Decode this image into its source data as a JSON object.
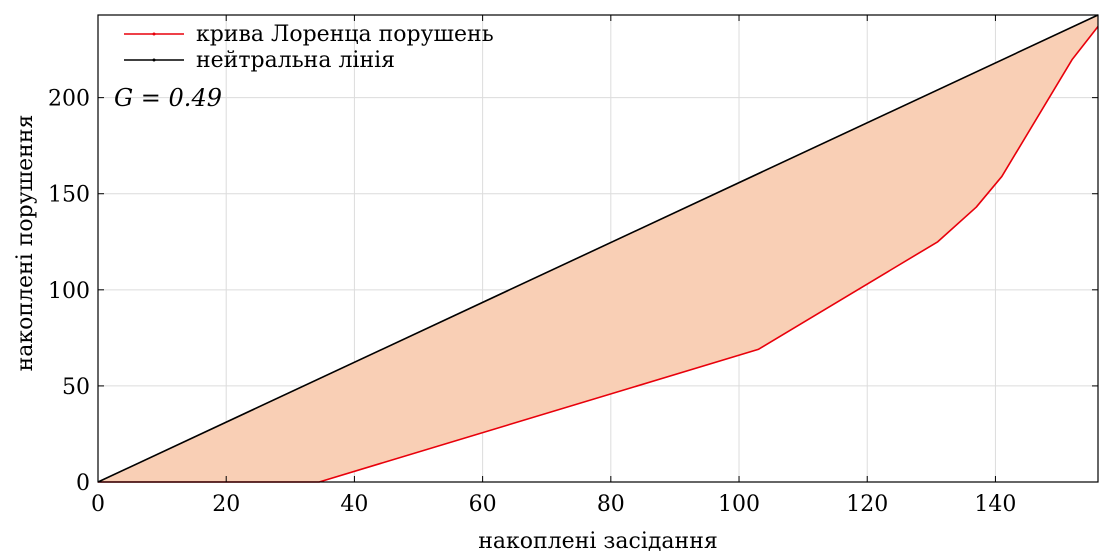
{
  "chart_data": {
    "type": "line",
    "title": "",
    "xlabel": "накоплені засідання",
    "ylabel": "накоплені порушення",
    "xlim": [
      0,
      156
    ],
    "ylim": [
      0,
      243
    ],
    "xticks": [
      0,
      20,
      40,
      60,
      80,
      100,
      120,
      140
    ],
    "yticks": [
      0,
      50,
      100,
      150,
      200
    ],
    "xtick_labels": [
      "0",
      "20",
      "40",
      "60",
      "80",
      "100",
      "120",
      "140"
    ],
    "ytick_labels": [
      "0",
      "50",
      "100",
      "150",
      "200"
    ],
    "grid": true,
    "legend_position": "top-left",
    "annotation": "G = 0.49",
    "series": [
      {
        "name": "крива Лоренца порушень",
        "color": "#e8000b",
        "x": [
          0,
          34.5,
          103,
          131,
          137,
          141,
          152,
          156
        ],
        "y": [
          0,
          0,
          69,
          125,
          143,
          159,
          220,
          237
        ]
      },
      {
        "name": "нейтральна лінія",
        "color": "#000000",
        "x": [
          0,
          156
        ],
        "y": [
          0,
          243
        ]
      }
    ],
    "fill_between": {
      "color": "#f9cfb5",
      "series": [
        0,
        1
      ]
    }
  }
}
